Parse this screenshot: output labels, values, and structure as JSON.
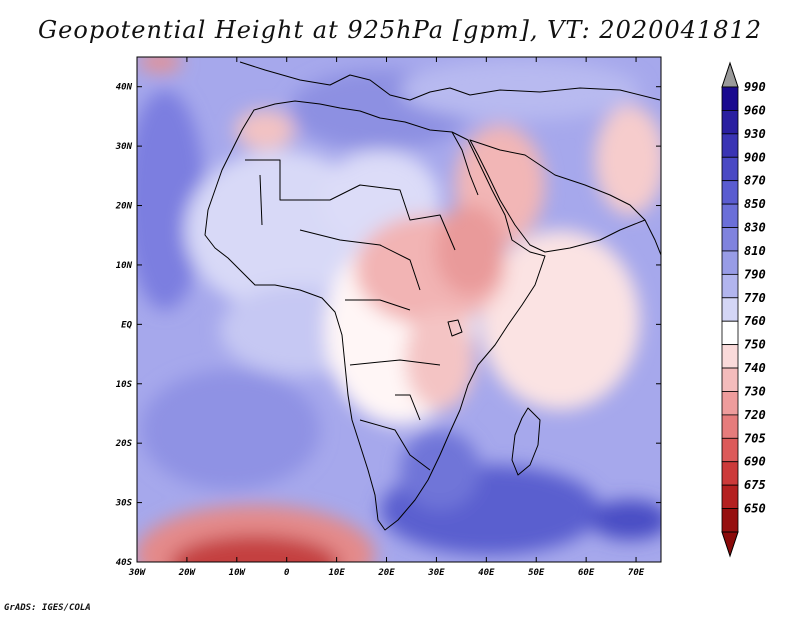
{
  "title": "Geopotential Height at 925hPa [gpm], VT: 2020041812",
  "credit": "GrADS: IGES/COLA",
  "map": {
    "lat_labels": [
      "40N",
      "30N",
      "20N",
      "10N",
      "EQ",
      "10S",
      "20S",
      "30S",
      "40S"
    ],
    "lon_labels": [
      "30W",
      "20W",
      "10W",
      "0",
      "10E",
      "20E",
      "30E",
      "40E",
      "50E",
      "60E",
      "70E"
    ],
    "lon_range": [
      -30,
      75
    ],
    "lat_range": [
      -40,
      45
    ]
  },
  "colorbar": {
    "levels": [
      "990",
      "960",
      "930",
      "900",
      "870",
      "850",
      "830",
      "810",
      "790",
      "770",
      "760",
      "750",
      "740",
      "730",
      "720",
      "705",
      "690",
      "675",
      "650"
    ],
    "colors": [
      "#1a0a8f",
      "#2a1fa0",
      "#3a34b4",
      "#4a49c4",
      "#5a5cd0",
      "#6b6fd8",
      "#8083de",
      "#989ce6",
      "#b2b5ee",
      "#d4d6f6",
      "#ffffff",
      "#fadada",
      "#f4bcbc",
      "#ee9c9c",
      "#e67c7c",
      "#dc5a5a",
      "#cc3a3a",
      "#b42020",
      "#961010"
    ],
    "top_arrow_color": "#9a9a9a",
    "bottom_arrow_color": "#8a0a0a"
  }
}
